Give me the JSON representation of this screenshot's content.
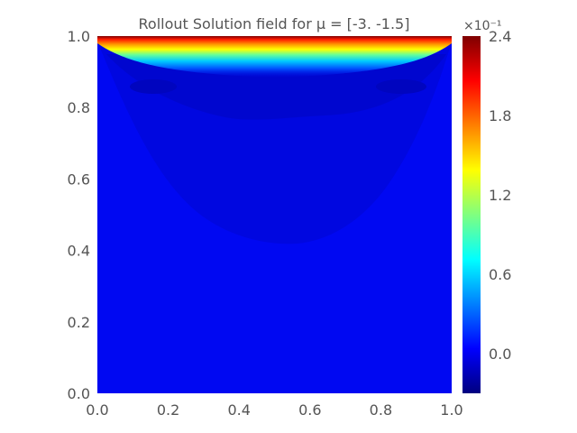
{
  "chart_data": {
    "type": "heatmap",
    "title": "Rollout Solution field for μ = [-3.  -1.5]",
    "xlabel": "",
    "ylabel": "",
    "xlim": [
      0.0,
      1.0
    ],
    "ylim": [
      0.0,
      1.0
    ],
    "x_ticks": [
      0.0,
      0.2,
      0.4,
      0.6,
      0.8,
      1.0
    ],
    "y_ticks": [
      0.0,
      0.2,
      0.4,
      0.6,
      0.8,
      1.0
    ],
    "x_tick_labels": [
      "0.0",
      "0.2",
      "0.4",
      "0.6",
      "0.8",
      "1.0"
    ],
    "y_tick_labels": [
      "0.0",
      "0.2",
      "0.4",
      "0.6",
      "0.8",
      "1.0"
    ],
    "colorbar": {
      "colormap": "jet",
      "range": [
        -0.3,
        2.4
      ],
      "ticks": [
        0.0,
        0.6,
        1.2,
        1.8,
        2.4
      ],
      "tick_labels": [
        "0.0",
        "0.6",
        "1.2",
        "1.8",
        "2.4"
      ],
      "exponent_label": "×10⁻¹",
      "placement": "right"
    },
    "field_description_values": {
      "background_level": 0.0,
      "lid_max": 2.4,
      "dark_region_min": -0.3
    },
    "grid": false
  }
}
